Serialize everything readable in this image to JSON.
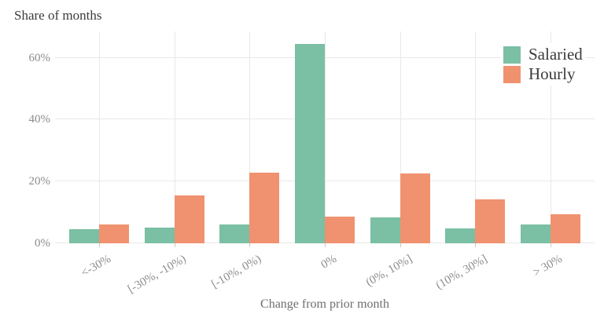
{
  "chart_data": {
    "type": "bar",
    "title": "Share of months",
    "xlabel": "Change from prior month",
    "ylabel": "",
    "categories": [
      "<-30%",
      "[-30%, -10%)",
      "[-10%, 0%)",
      "0%",
      "(0%, 10%]",
      "(10%, 30%]",
      "> 30%"
    ],
    "series": [
      {
        "name": "Salaried",
        "color": "#7bbfa4",
        "values": [
          4.5,
          5.0,
          6.0,
          64.5,
          8.5,
          4.7,
          6.0
        ]
      },
      {
        "name": "Hourly",
        "color": "#f09270",
        "values": [
          6.2,
          15.6,
          22.8,
          8.7,
          22.7,
          14.3,
          9.5
        ]
      }
    ],
    "yticks": [
      "0%",
      "20%",
      "40%",
      "60%"
    ],
    "ytick_values": [
      0,
      20,
      40,
      60
    ],
    "ylim": [
      0,
      68.5
    ],
    "grid": true,
    "legend_position": "top-right",
    "colors": {
      "grid": "#e8e8e8",
      "tick_text": "#8c8c8c",
      "title_text": "#3b3b3b",
      "axis_label_text": "#6e6e6e"
    }
  }
}
